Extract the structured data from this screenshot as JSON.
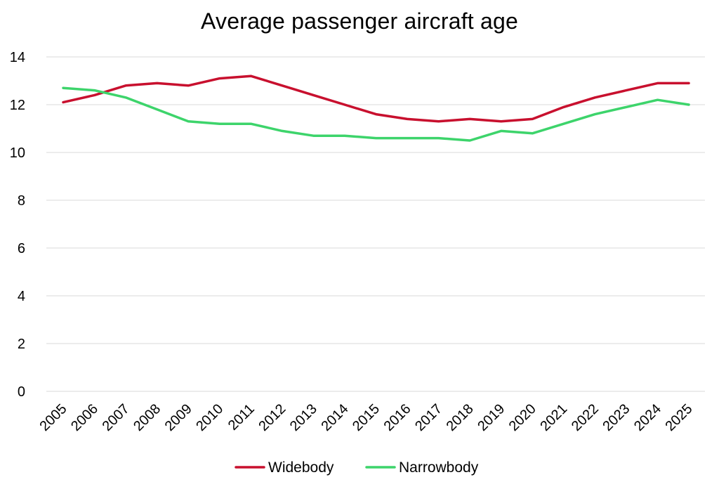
{
  "chart_data": {
    "type": "line",
    "title": "Average passenger aircraft age",
    "xlabel": "",
    "ylabel": "",
    "categories": [
      "2005",
      "2006",
      "2007",
      "2008",
      "2009",
      "2010",
      "2011",
      "2012",
      "2013",
      "2014",
      "2015",
      "2016",
      "2017",
      "2018",
      "2019",
      "2020",
      "2021",
      "2022",
      "2023",
      "2024",
      "2025"
    ],
    "ylim": [
      0,
      14
    ],
    "yticks": [
      0,
      2,
      4,
      6,
      8,
      10,
      12,
      14
    ],
    "grid": true,
    "legend_position": "bottom",
    "series": [
      {
        "name": "Widebody",
        "color": "#C8102E",
        "values": [
          12.1,
          12.4,
          12.8,
          12.9,
          12.8,
          13.1,
          13.2,
          12.8,
          12.4,
          12.0,
          11.6,
          11.4,
          11.3,
          11.4,
          11.3,
          11.4,
          11.9,
          12.3,
          12.6,
          12.9,
          12.9
        ]
      },
      {
        "name": "Narrowbody",
        "color": "#3DD46B",
        "values": [
          12.7,
          12.6,
          12.3,
          11.8,
          11.3,
          11.2,
          11.2,
          10.9,
          10.7,
          10.7,
          10.6,
          10.6,
          10.6,
          10.5,
          10.9,
          10.8,
          11.2,
          11.6,
          11.9,
          12.2,
          12.0
        ]
      }
    ]
  }
}
